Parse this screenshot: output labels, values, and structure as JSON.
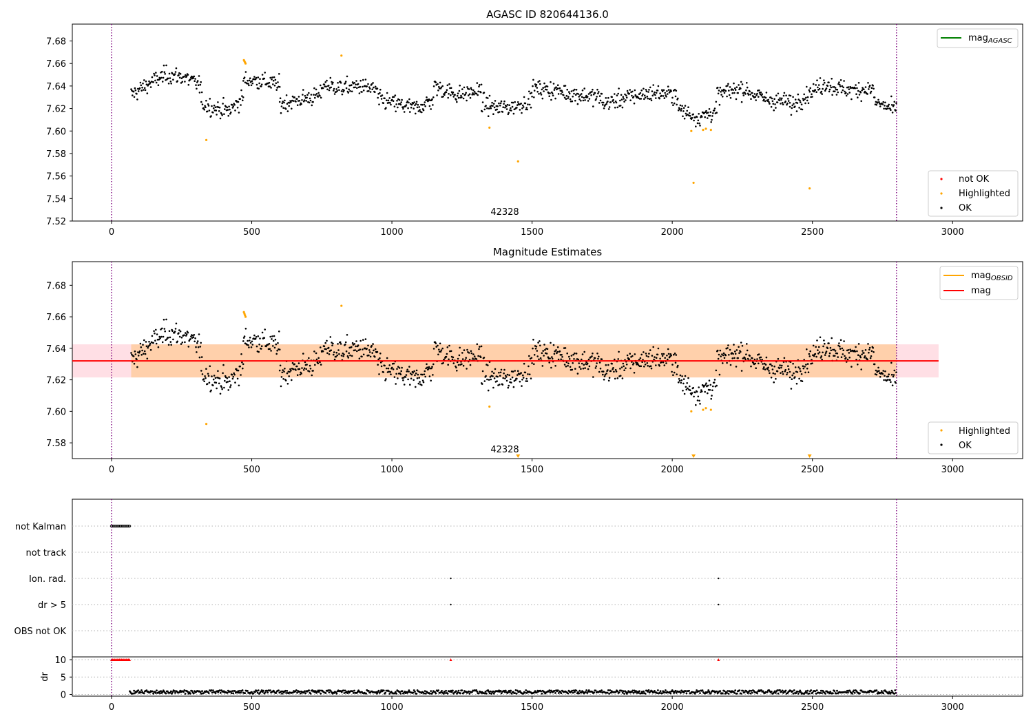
{
  "chart_data": [
    {
      "type": "scatter",
      "title": "AGASC ID 820644136.0",
      "xlim": [
        -140,
        3250
      ],
      "ylim": [
        7.52,
        7.695
      ],
      "xticks": [
        0,
        500,
        1000,
        1500,
        2000,
        2500,
        3000
      ],
      "yticks": [
        7.52,
        7.54,
        7.56,
        7.58,
        7.6,
        7.62,
        7.64,
        7.66,
        7.68
      ],
      "vlines": [
        0,
        2800
      ],
      "annotation": "42328",
      "legend_lines": [
        {
          "name": "mag",
          "subscript": "AGASC",
          "color": "#008000"
        }
      ],
      "legend_points": [
        {
          "name": "not OK",
          "color": "#ff0000"
        },
        {
          "name": "Highlighted",
          "color": "#ffa500"
        },
        {
          "name": "OK",
          "color": "#000000"
        }
      ],
      "segments": [
        {
          "x": [
            70,
            320
          ],
          "levels": [
            7.632,
            7.642,
            7.65,
            7.648,
            7.64
          ]
        },
        {
          "x": [
            320,
            470
          ],
          "levels": [
            7.625,
            7.62,
            7.618,
            7.63
          ]
        },
        {
          "x": [
            470,
            600
          ],
          "levels": [
            7.645,
            7.645,
            7.64
          ]
        },
        {
          "x": [
            600,
            750
          ],
          "levels": [
            7.624,
            7.628,
            7.632
          ]
        },
        {
          "x": [
            750,
            950
          ],
          "levels": [
            7.642,
            7.638,
            7.64,
            7.636
          ]
        },
        {
          "x": [
            950,
            1150
          ],
          "levels": [
            7.628,
            7.624,
            7.62,
            7.628
          ]
        },
        {
          "x": [
            1150,
            1320
          ],
          "levels": [
            7.64,
            7.632,
            7.636
          ]
        },
        {
          "x": [
            1320,
            1500
          ],
          "levels": [
            7.625,
            7.62,
            7.622,
            7.628
          ]
        },
        {
          "x": [
            1500,
            1750
          ],
          "levels": [
            7.638,
            7.636,
            7.632,
            7.63
          ]
        },
        {
          "x": [
            1750,
            2020
          ],
          "levels": [
            7.624,
            7.63,
            7.634,
            7.632
          ]
        },
        {
          "x": [
            2020,
            2160
          ],
          "levels": [
            7.62,
            7.612,
            7.618
          ]
        },
        {
          "x": [
            2160,
            2420
          ],
          "levels": [
            7.632,
            7.638,
            7.628,
            7.626
          ]
        },
        {
          "x": [
            2420,
            2560
          ],
          "levels": [
            7.622,
            7.634,
            7.644
          ]
        },
        {
          "x": [
            2560,
            2720
          ],
          "levels": [
            7.64,
            7.636,
            7.638
          ]
        },
        {
          "x": [
            2720,
            2800
          ],
          "levels": [
            7.626,
            7.618
          ]
        }
      ],
      "highlighted": {
        "x": [
          338,
          472,
          474,
          476,
          478,
          820,
          1348,
          1450,
          2068,
          2076,
          2110,
          2120,
          2138,
          2490
        ],
        "y": [
          7.592,
          7.663,
          7.662,
          7.661,
          7.66,
          7.667,
          7.603,
          7.573,
          7.6,
          7.554,
          7.601,
          7.602,
          7.601,
          7.549
        ]
      }
    },
    {
      "type": "scatter",
      "title": "Magnitude Estimates",
      "xlim": [
        -140,
        3250
      ],
      "ylim": [
        7.57,
        7.695
      ],
      "xticks": [
        0,
        500,
        1000,
        1500,
        2000,
        2500,
        3000
      ],
      "yticks": [
        7.58,
        7.6,
        7.62,
        7.64,
        7.66,
        7.68
      ],
      "vlines": [
        0,
        2800
      ],
      "annotation": "42328",
      "mean_mag": 7.632,
      "band_range": [
        7.6215,
        7.6425
      ],
      "band_x": [
        -140,
        2950
      ],
      "obsid_band_x": [
        70,
        2800
      ],
      "legend_lines": [
        {
          "name": "mag",
          "subscript": "OBSID",
          "color": "#ffa500"
        },
        {
          "name": "mag",
          "subscript": "",
          "color": "#ff0000"
        }
      ],
      "legend_points": [
        {
          "name": "Highlighted",
          "color": "#ffa500"
        },
        {
          "name": "OK",
          "color": "#000000"
        }
      ],
      "highlighted": {
        "x": [
          338,
          472,
          474,
          476,
          478,
          820,
          1348,
          2068,
          2110,
          2120,
          2138
        ],
        "y": [
          7.592,
          7.663,
          7.662,
          7.661,
          7.66,
          7.667,
          7.603,
          7.6,
          7.601,
          7.602,
          7.601
        ]
      },
      "below_axis_markers": {
        "x": [
          1450,
          2076,
          2490
        ]
      }
    },
    {
      "type": "scatter",
      "xlim": [
        -140,
        3250
      ],
      "xticks": [
        0,
        500,
        1000,
        1500,
        2000,
        2500,
        3000
      ],
      "vlines": [
        0,
        2800
      ],
      "flag_rows": [
        "not Kalman",
        "not track",
        "Ion. rad.",
        "dr > 5",
        "OBS not OK"
      ],
      "flags": {
        "not Kalman": {
          "x_range": [
            0,
            65
          ]
        },
        "not track": {
          "x_range": []
        },
        "Ion. rad.": {
          "x": [
            1210,
            2165
          ]
        },
        "dr > 5": {
          "x": [
            1210,
            2165
          ]
        },
        "OBS not OK": {
          "x_range": []
        }
      },
      "dr": {
        "ylabel": "dr",
        "yticks": [
          0,
          5,
          10
        ],
        "ylim": [
          -0.5,
          10.8
        ],
        "clipped": {
          "x_range": [
            0,
            65
          ],
          "extra_x": [
            1210,
            2165
          ],
          "value": 10
        },
        "baseline_range": [
          0.2,
          1.2
        ],
        "x_range": [
          65,
          2800
        ]
      }
    }
  ]
}
